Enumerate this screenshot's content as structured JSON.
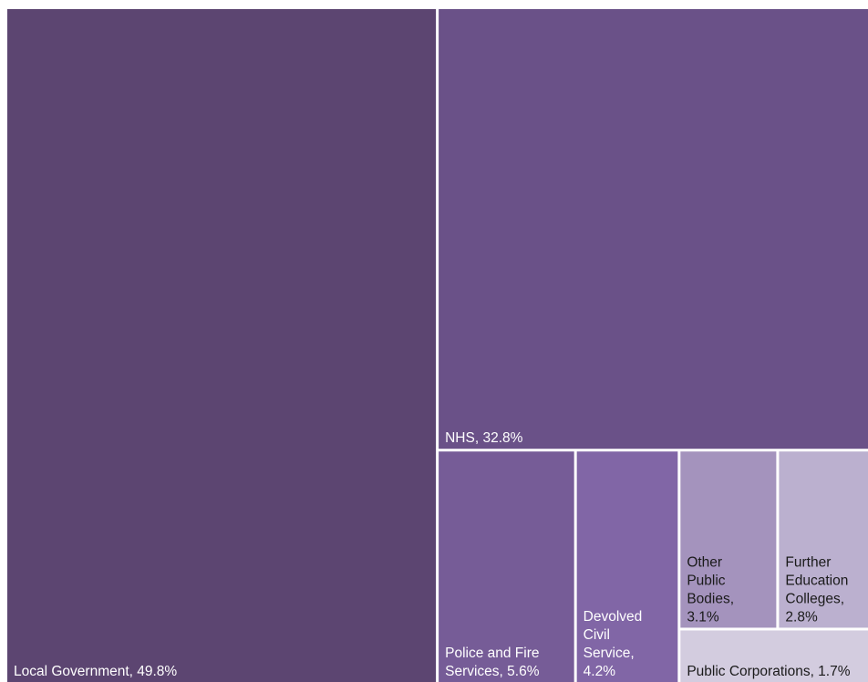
{
  "chart_data": {
    "type": "treemap",
    "title": "",
    "unit": "%",
    "items": [
      {
        "name": "Local Government",
        "value": 49.8,
        "label_lines": [
          "Local Government, 49.8%"
        ],
        "color": "#5c4571",
        "text_color": "#ffffff"
      },
      {
        "name": "NHS",
        "value": 32.8,
        "label_lines": [
          "NHS, 32.8%"
        ],
        "color": "#6a5188",
        "text_color": "#ffffff"
      },
      {
        "name": "Police and Fire Services",
        "value": 5.6,
        "label_lines": [
          "Police and Fire",
          "Services, 5.6%"
        ],
        "color": "#765c97",
        "text_color": "#ffffff"
      },
      {
        "name": "Devolved Civil Service",
        "value": 4.2,
        "label_lines": [
          "Devolved",
          "Civil",
          "Service,",
          "4.2%"
        ],
        "color": "#8166a6",
        "text_color": "#ffffff"
      },
      {
        "name": "Other Public Bodies",
        "value": 3.1,
        "label_lines": [
          "Other",
          "Public",
          "Bodies,",
          "3.1%"
        ],
        "color": "#a493bd",
        "text_color": "#1a1a1a"
      },
      {
        "name": "Further Education Colleges",
        "value": 2.8,
        "label_lines": [
          "Further",
          "Education",
          "Colleges,",
          "2.8%"
        ],
        "color": "#bbb0cf",
        "text_color": "#1a1a1a"
      },
      {
        "name": "Public Corporations",
        "value": 1.7,
        "label_lines": [
          "Public Corporations, 1.7%"
        ],
        "color": "#d3ccdf",
        "text_color": "#1a1a1a"
      }
    ]
  }
}
